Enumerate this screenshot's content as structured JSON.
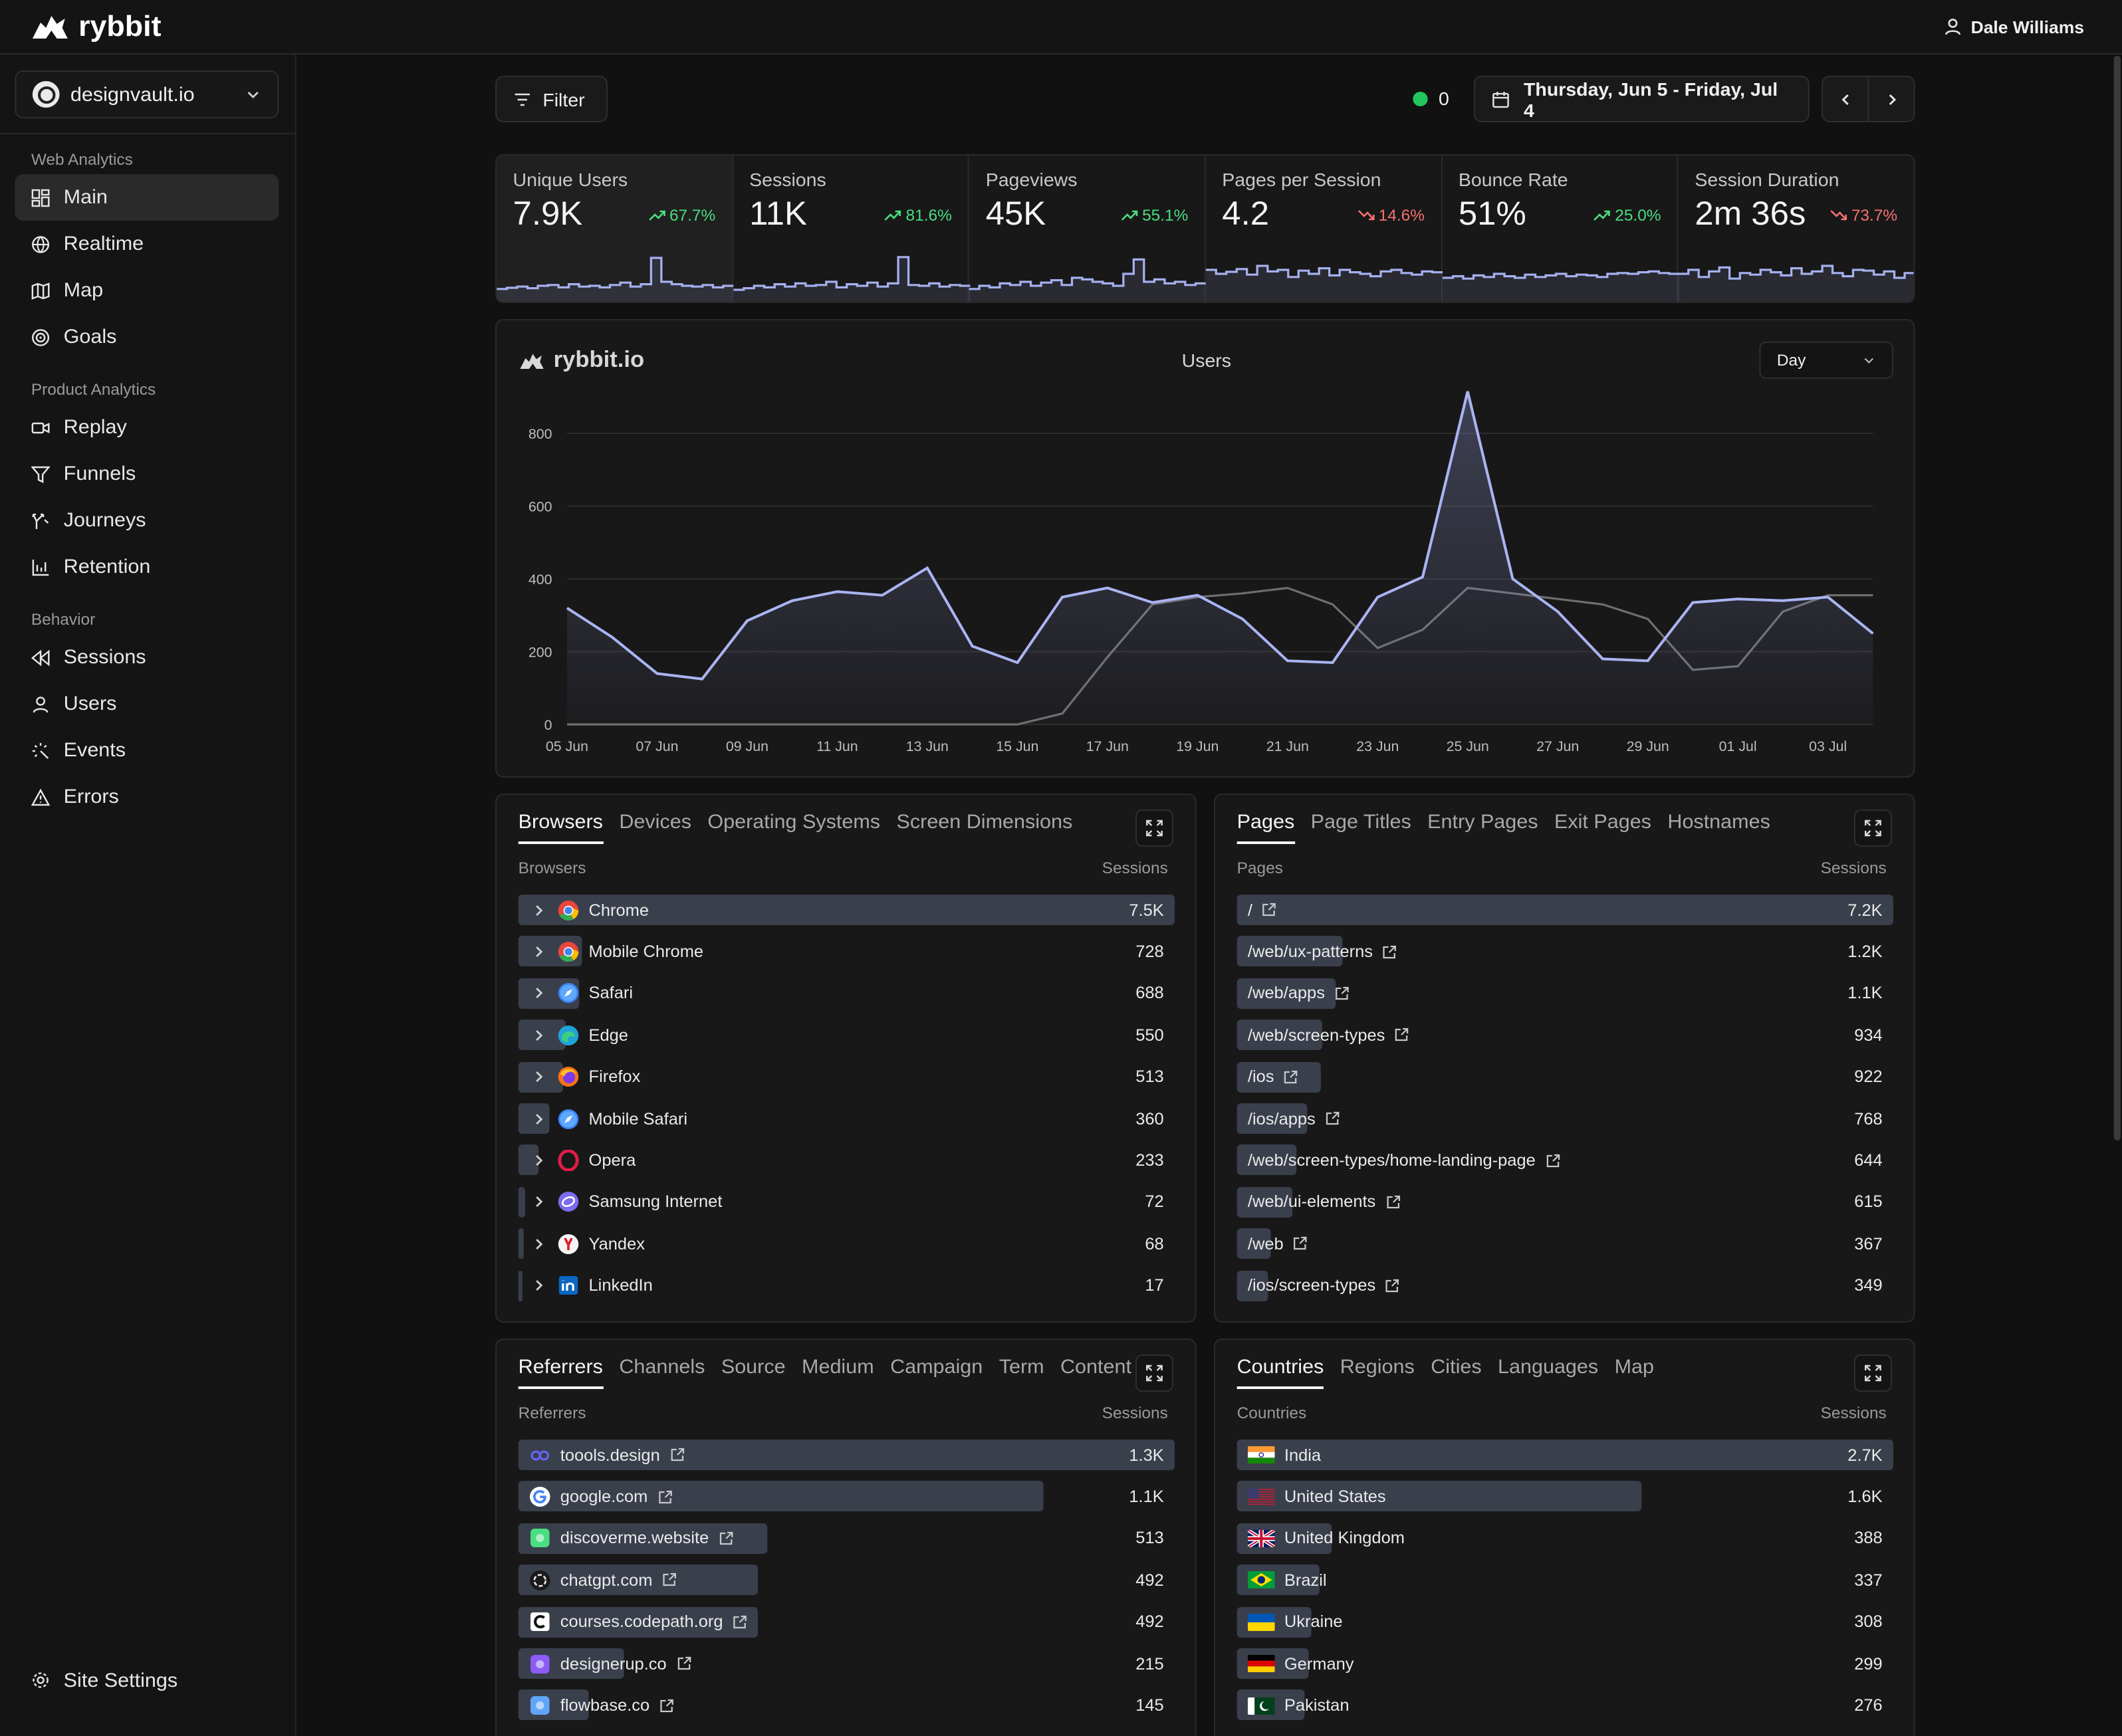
{
  "app": {
    "name": "rybbit",
    "user": "Dale Williams"
  },
  "sidebar": {
    "site": "designvault.io",
    "groups": [
      {
        "title": "Web Analytics",
        "items": [
          {
            "label": "Main",
            "icon": "dashboard-icon",
            "active": true
          },
          {
            "label": "Realtime",
            "icon": "globe-icon"
          },
          {
            "label": "Map",
            "icon": "map-icon"
          },
          {
            "label": "Goals",
            "icon": "target-icon"
          }
        ]
      },
      {
        "title": "Product Analytics",
        "items": [
          {
            "label": "Replay",
            "icon": "video-icon"
          },
          {
            "label": "Funnels",
            "icon": "funnel-icon"
          },
          {
            "label": "Journeys",
            "icon": "split-icon"
          },
          {
            "label": "Retention",
            "icon": "bar-chart-icon"
          }
        ]
      },
      {
        "title": "Behavior",
        "items": [
          {
            "label": "Sessions",
            "icon": "rewind-icon"
          },
          {
            "label": "Users",
            "icon": "user-icon"
          },
          {
            "label": "Events",
            "icon": "sparkle-icon"
          },
          {
            "label": "Errors",
            "icon": "warning-icon"
          }
        ]
      }
    ],
    "settings": "Site Settings"
  },
  "toolbar": {
    "filter": "Filter",
    "live_count": "0",
    "date_range": "Thursday, Jun 5 - Friday, Jul 4"
  },
  "stats": [
    {
      "label": "Unique Users",
      "value": "7.9K",
      "change": "67.7%",
      "dir": "up",
      "spark": [
        0.12,
        0.15,
        0.18,
        0.14,
        0.2,
        0.22,
        0.16,
        0.24,
        0.18,
        0.2,
        0.16,
        0.22,
        0.28,
        0.18,
        0.24,
        0.9,
        0.3,
        0.24,
        0.2,
        0.18,
        0.22,
        0.16,
        0.2
      ]
    },
    {
      "label": "Sessions",
      "value": "11K",
      "change": "81.6%",
      "dir": "up",
      "spark": [
        0.1,
        0.14,
        0.2,
        0.16,
        0.24,
        0.18,
        0.26,
        0.2,
        0.22,
        0.3,
        0.16,
        0.24,
        0.2,
        0.28,
        0.18,
        0.26,
        0.92,
        0.22,
        0.2,
        0.26,
        0.18,
        0.22,
        0.2
      ]
    },
    {
      "label": "Pageviews",
      "value": "45K",
      "change": "55.1%",
      "dir": "up",
      "spark": [
        0.12,
        0.2,
        0.16,
        0.26,
        0.22,
        0.3,
        0.2,
        0.28,
        0.34,
        0.22,
        0.4,
        0.36,
        0.3,
        0.26,
        0.2,
        0.5,
        0.86,
        0.3,
        0.36,
        0.26,
        0.3,
        0.22,
        0.26
      ]
    },
    {
      "label": "Pages per Session",
      "value": "4.2",
      "change": "14.6%",
      "dir": "down",
      "spark": [
        0.6,
        0.5,
        0.55,
        0.62,
        0.48,
        0.7,
        0.56,
        0.6,
        0.42,
        0.58,
        0.5,
        0.64,
        0.46,
        0.6,
        0.54,
        0.5,
        0.44,
        0.56,
        0.6,
        0.52,
        0.48,
        0.56,
        0.54
      ]
    },
    {
      "label": "Bounce Rate",
      "value": "51%",
      "change": "25.0%",
      "dir": "up",
      "spark": [
        0.4,
        0.44,
        0.38,
        0.46,
        0.42,
        0.5,
        0.44,
        0.4,
        0.48,
        0.42,
        0.46,
        0.5,
        0.44,
        0.48,
        0.46,
        0.42,
        0.5,
        0.52,
        0.5,
        0.54,
        0.56,
        0.52,
        0.5
      ]
    },
    {
      "label": "Session Duration",
      "value": "2m 36s",
      "change": "73.7%",
      "dir": "down",
      "spark": [
        0.5,
        0.6,
        0.42,
        0.56,
        0.66,
        0.38,
        0.52,
        0.48,
        0.6,
        0.54,
        0.46,
        0.64,
        0.5,
        0.56,
        0.7,
        0.52,
        0.44,
        0.6,
        0.58,
        0.48,
        0.56,
        0.4,
        0.52
      ]
    }
  ],
  "chart": {
    "brand": "rybbit.io",
    "title": "Users",
    "granularity": "Day"
  },
  "chart_data": {
    "type": "line",
    "ylim": [
      0,
      900
    ],
    "yticks": [
      0,
      200,
      400,
      600,
      800
    ],
    "x": [
      "05 Jun",
      "06 Jun",
      "07 Jun",
      "08 Jun",
      "09 Jun",
      "10 Jun",
      "11 Jun",
      "12 Jun",
      "13 Jun",
      "14 Jun",
      "15 Jun",
      "16 Jun",
      "17 Jun",
      "18 Jun",
      "19 Jun",
      "20 Jun",
      "21 Jun",
      "22 Jun",
      "23 Jun",
      "24 Jun",
      "25 Jun",
      "26 Jun",
      "27 Jun",
      "28 Jun",
      "29 Jun",
      "30 Jun",
      "01 Jul",
      "02 Jul",
      "03 Jul",
      "04 Jul"
    ],
    "xtick_labels": [
      "05 Jun",
      "07 Jun",
      "09 Jun",
      "11 Jun",
      "13 Jun",
      "15 Jun",
      "17 Jun",
      "19 Jun",
      "21 Jun",
      "23 Jun",
      "25 Jun",
      "27 Jun",
      "29 Jun",
      "01 Jul",
      "03 Jul"
    ],
    "series": [
      {
        "values": [
          320,
          240,
          140,
          125,
          285,
          340,
          365,
          355,
          430,
          215,
          170,
          350,
          375,
          335,
          355,
          290,
          175,
          170,
          350,
          405,
          915,
          400,
          310,
          180,
          175,
          335,
          345,
          340,
          350,
          250
        ]
      },
      {
        "values": [
          0,
          0,
          0,
          0,
          0,
          0,
          0,
          0,
          0,
          0,
          0,
          30,
          185,
          330,
          350,
          360,
          375,
          330,
          210,
          260,
          375,
          360,
          345,
          330,
          290,
          150,
          160,
          310,
          355,
          355
        ]
      }
    ]
  },
  "browsers": {
    "tabs": [
      "Browsers",
      "Devices",
      "Operating Systems",
      "Screen Dimensions"
    ],
    "col_label": "Browsers",
    "col_value": "Sessions",
    "rows": [
      {
        "label": "Chrome",
        "value": "7.5K",
        "pct": 1.0,
        "icon": "chrome-icon",
        "color": "#e8453c"
      },
      {
        "label": "Mobile Chrome",
        "value": "728",
        "pct": 0.097,
        "icon": "chrome-icon",
        "color": "#e8453c"
      },
      {
        "label": "Safari",
        "value": "688",
        "pct": 0.092,
        "icon": "safari-icon",
        "color": "#3b82f6"
      },
      {
        "label": "Edge",
        "value": "550",
        "pct": 0.073,
        "icon": "edge-icon",
        "color": "#10a0c8"
      },
      {
        "label": "Firefox",
        "value": "513",
        "pct": 0.068,
        "icon": "firefox-icon",
        "color": "#f97316"
      },
      {
        "label": "Mobile Safari",
        "value": "360",
        "pct": 0.048,
        "icon": "safari-icon",
        "color": "#3b82f6"
      },
      {
        "label": "Opera",
        "value": "233",
        "pct": 0.031,
        "icon": "opera-icon",
        "color": "#e11d48"
      },
      {
        "label": "Samsung Internet",
        "value": "72",
        "pct": 0.01,
        "icon": "samsung-icon",
        "color": "#7c6cf0"
      },
      {
        "label": "Yandex",
        "value": "68",
        "pct": 0.009,
        "icon": "yandex-icon",
        "color": "#f5f5f5"
      },
      {
        "label": "LinkedIn",
        "value": "17",
        "pct": 0.002,
        "icon": "linkedin-icon",
        "color": "#0a66c2"
      }
    ]
  },
  "pages": {
    "tabs": [
      "Pages",
      "Page Titles",
      "Entry Pages",
      "Exit Pages",
      "Hostnames"
    ],
    "col_label": "Pages",
    "col_value": "Sessions",
    "rows": [
      {
        "label": "/",
        "value": "7.2K",
        "pct": 1.0
      },
      {
        "label": "/web/ux-patterns",
        "value": "1.2K",
        "pct": 0.16
      },
      {
        "label": "/web/apps",
        "value": "1.1K",
        "pct": 0.15
      },
      {
        "label": "/web/screen-types",
        "value": "934",
        "pct": 0.13
      },
      {
        "label": "/ios",
        "value": "922",
        "pct": 0.128
      },
      {
        "label": "/ios/apps",
        "value": "768",
        "pct": 0.107
      },
      {
        "label": "/web/screen-types/home-landing-page",
        "value": "644",
        "pct": 0.09
      },
      {
        "label": "/web/ui-elements",
        "value": "615",
        "pct": 0.085
      },
      {
        "label": "/web",
        "value": "367",
        "pct": 0.051
      },
      {
        "label": "/ios/screen-types",
        "value": "349",
        "pct": 0.048
      }
    ]
  },
  "referrers": {
    "tabs": [
      "Referrers",
      "Channels",
      "Source",
      "Medium",
      "Campaign",
      "Term",
      "Content"
    ],
    "col_label": "Referrers",
    "col_value": "Sessions",
    "rows": [
      {
        "label": "toools.design",
        "value": "1.3K",
        "pct": 1.0,
        "color": "#6366f1"
      },
      {
        "label": "google.com",
        "value": "1.1K",
        "pct": 0.8,
        "color": "#ffffff"
      },
      {
        "label": "discoverme.website",
        "value": "513",
        "pct": 0.38,
        "color": "#4ade80"
      },
      {
        "label": "chatgpt.com",
        "value": "492",
        "pct": 0.365,
        "color": "#d4d4d4"
      },
      {
        "label": "courses.codepath.org",
        "value": "492",
        "pct": 0.365,
        "color": "#ffffff"
      },
      {
        "label": "designerup.co",
        "value": "215",
        "pct": 0.16,
        "color": "#8b5cf6"
      },
      {
        "label": "flowbase.co",
        "value": "145",
        "pct": 0.108,
        "color": "#60a5fa"
      }
    ]
  },
  "countries": {
    "tabs": [
      "Countries",
      "Regions",
      "Cities",
      "Languages",
      "Map"
    ],
    "col_label": "Countries",
    "col_value": "Sessions",
    "rows": [
      {
        "label": "India",
        "value": "2.7K",
        "pct": 1.0,
        "flag": "india"
      },
      {
        "label": "United States",
        "value": "1.6K",
        "pct": 0.617,
        "flag": "us"
      },
      {
        "label": "United Kingdom",
        "value": "388",
        "pct": 0.145,
        "flag": "uk"
      },
      {
        "label": "Brazil",
        "value": "337",
        "pct": 0.125,
        "flag": "brazil"
      },
      {
        "label": "Ukraine",
        "value": "308",
        "pct": 0.114,
        "flag": "ukraine"
      },
      {
        "label": "Germany",
        "value": "299",
        "pct": 0.11,
        "flag": "germany"
      },
      {
        "label": "Pakistan",
        "value": "276",
        "pct": 0.102,
        "flag": "pakistan"
      }
    ]
  }
}
